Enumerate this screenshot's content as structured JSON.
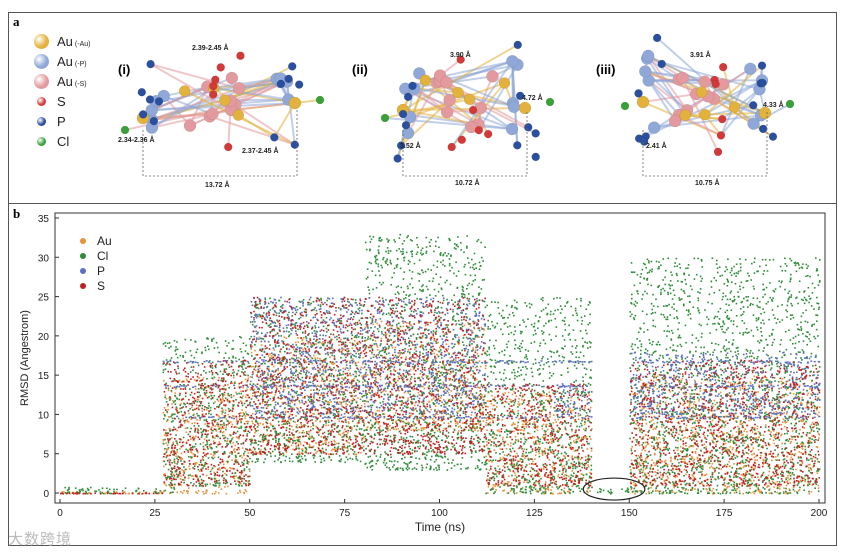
{
  "panel_a": {
    "label": "a",
    "legend": [
      {
        "name": "Au",
        "sub": "(-Au)",
        "color": "#e3b23c",
        "size": "large"
      },
      {
        "name": "Au",
        "sub": "(-P)",
        "color": "#8fa8d8",
        "size": "large"
      },
      {
        "name": "Au",
        "sub": "(-S)",
        "color": "#e39a9e",
        "size": "large"
      },
      {
        "name": "S",
        "sub": "",
        "color": "#d23a3a",
        "size": "small"
      },
      {
        "name": "P",
        "sub": "",
        "color": "#2a4f9e",
        "size": "small"
      },
      {
        "name": "Cl",
        "sub": "",
        "color": "#3aa13a",
        "size": "small"
      }
    ],
    "structures": [
      {
        "label": "(i)",
        "measurements": [
          "2.39-2.45 Å",
          "2.34-2.36 Å",
          "2.37-2.45 Å",
          "13.72 Å"
        ]
      },
      {
        "label": "(ii)",
        "measurements": [
          "3.90 Å",
          "4.72 Å",
          "3.52 Å",
          "10.72 Å"
        ]
      },
      {
        "label": "(iii)",
        "measurements": [
          "3.91 Å",
          "4.33 Å",
          "2.41 Å",
          "10.75 Å"
        ]
      }
    ]
  },
  "panel_b": {
    "label": "b",
    "chart_data": {
      "type": "scatter",
      "xlabel": "Time (ns)",
      "ylabel": "RMSD (Angestrom)",
      "xlim": [
        0,
        200
      ],
      "ylim": [
        0,
        35
      ],
      "xticks": [
        "0",
        "25",
        "50",
        "75",
        "100",
        "125",
        "150",
        "175",
        "200"
      ],
      "yticks": [
        "0",
        "5",
        "10",
        "15",
        "20",
        "25",
        "30",
        "35"
      ],
      "legend_placement": "top-left",
      "annotation": {
        "shape": "ellipse",
        "x_range": [
          140,
          152
        ],
        "y": 0.5
      },
      "series": [
        {
          "name": "Au",
          "color": "#e8913a",
          "segments": [
            [
              0,
              27,
              0,
              0.3
            ],
            [
              27,
              50,
              0,
              15
            ],
            [
              50,
              80,
              5,
              20
            ],
            [
              80,
              112,
              8,
              22
            ],
            [
              112,
              140,
              0,
              13
            ],
            [
              150,
              200,
              0,
              15
            ]
          ]
        },
        {
          "name": "Cl",
          "color": "#2e8b3a",
          "segments": [
            [
              0,
              30,
              0,
              0.8
            ],
            [
              27,
              50,
              1,
              20
            ],
            [
              50,
              80,
              4,
              25
            ],
            [
              80,
              112,
              3,
              33
            ],
            [
              112,
              140,
              0,
              25
            ],
            [
              141,
              150,
              0,
              0.8
            ],
            [
              150,
              200,
              0,
              30
            ]
          ]
        },
        {
          "name": "P",
          "color": "#5a6fc0",
          "levels": [
            9.7,
            13.7,
            16.8
          ],
          "level_range": [
            27,
            200
          ],
          "segments": [
            [
              50,
              112,
              10,
              25
            ],
            [
              130,
              140,
              10,
              14
            ],
            [
              150,
              200,
              10,
              18
            ]
          ]
        },
        {
          "name": "S",
          "color": "#c0201f",
          "segments": [
            [
              0,
              27,
              0,
              0.1
            ],
            [
              27,
              50,
              1,
              17
            ],
            [
              50,
              112,
              5,
              25
            ],
            [
              112,
              140,
              1,
              14
            ],
            [
              150,
              200,
              1,
              17
            ]
          ]
        }
      ]
    }
  },
  "watermark": "大数跨境"
}
